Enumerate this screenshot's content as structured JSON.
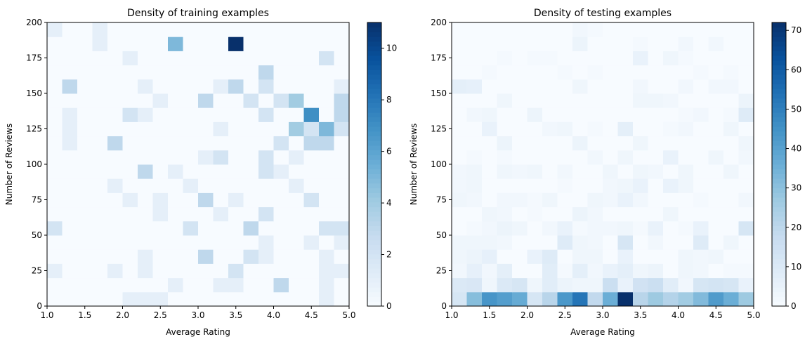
{
  "chart_data": [
    {
      "type": "heatmap",
      "title": "Density of training examples",
      "xlabel": "Average Rating",
      "ylabel": "Number of Reviews",
      "xlim": [
        1.0,
        5.0
      ],
      "ylim": [
        0,
        200
      ],
      "x_bins": 20,
      "y_bins": 20,
      "xticks": [
        "1.0",
        "1.5",
        "2.0",
        "2.5",
        "3.0",
        "3.5",
        "4.0",
        "4.5",
        "5.0"
      ],
      "yticks": [
        "0",
        "25",
        "50",
        "75",
        "100",
        "125",
        "150",
        "175",
        "200"
      ],
      "colormap": "Blues",
      "colorbar_range": [
        0,
        11
      ],
      "colorbar_ticks": [
        "0",
        "2",
        "4",
        "6",
        "8",
        "10"
      ],
      "counts_by_y_bin_from_bottom": [
        [
          0,
          0,
          0,
          0,
          0,
          1,
          1,
          1,
          0,
          0,
          0,
          0,
          0,
          0,
          0,
          0,
          0,
          0,
          1,
          0
        ],
        [
          0,
          0,
          0,
          0,
          0,
          0,
          0,
          0,
          1,
          0,
          0,
          1,
          1,
          0,
          0,
          3,
          0,
          0,
          1,
          0
        ],
        [
          1,
          0,
          0,
          0,
          1,
          0,
          1,
          0,
          0,
          0,
          0,
          0,
          2,
          0,
          0,
          0,
          0,
          0,
          1,
          1
        ],
        [
          0,
          0,
          0,
          0,
          0,
          0,
          1,
          0,
          0,
          0,
          3,
          0,
          0,
          2,
          1,
          0,
          0,
          0,
          1,
          0
        ],
        [
          0,
          0,
          0,
          0,
          0,
          0,
          0,
          0,
          0,
          0,
          0,
          0,
          0,
          0,
          1,
          0,
          0,
          1,
          0,
          1
        ],
        [
          2,
          0,
          0,
          0,
          0,
          0,
          0,
          0,
          0,
          2,
          0,
          0,
          0,
          3,
          0,
          0,
          0,
          0,
          2,
          2
        ],
        [
          0,
          0,
          0,
          0,
          0,
          0,
          0,
          1,
          0,
          0,
          0,
          1,
          0,
          0,
          2,
          0,
          0,
          0,
          0,
          0
        ],
        [
          0,
          0,
          0,
          0,
          0,
          1,
          0,
          1,
          0,
          0,
          3,
          0,
          1,
          0,
          0,
          0,
          0,
          2,
          0,
          0
        ],
        [
          0,
          0,
          0,
          0,
          1,
          0,
          0,
          0,
          0,
          1,
          0,
          0,
          0,
          0,
          0,
          0,
          1,
          0,
          0,
          0
        ],
        [
          0,
          0,
          0,
          0,
          0,
          0,
          3,
          0,
          1,
          0,
          0,
          0,
          0,
          0,
          2,
          1,
          0,
          0,
          0,
          0
        ],
        [
          0,
          0,
          0,
          0,
          0,
          0,
          0,
          0,
          0,
          0,
          1,
          2,
          0,
          0,
          2,
          0,
          1,
          0,
          0,
          0
        ],
        [
          0,
          1,
          0,
          0,
          3,
          0,
          0,
          0,
          0,
          0,
          0,
          0,
          0,
          0,
          0,
          2,
          0,
          3,
          3,
          0
        ],
        [
          0,
          1,
          0,
          0,
          0,
          0,
          0,
          0,
          0,
          0,
          0,
          1,
          0,
          0,
          0,
          0,
          4,
          2,
          5,
          2
        ],
        [
          0,
          1,
          0,
          0,
          0,
          2,
          1,
          0,
          0,
          0,
          0,
          0,
          0,
          0,
          2,
          0,
          0,
          7,
          0,
          3
        ],
        [
          0,
          0,
          0,
          0,
          0,
          0,
          0,
          1,
          0,
          0,
          3,
          0,
          0,
          2,
          0,
          2,
          4,
          0,
          0,
          3
        ],
        [
          0,
          3,
          0,
          0,
          0,
          0,
          1,
          0,
          0,
          0,
          0,
          1,
          3,
          0,
          2,
          0,
          0,
          0,
          0,
          1
        ],
        [
          0,
          0,
          0,
          0,
          0,
          0,
          0,
          0,
          0,
          0,
          0,
          0,
          0,
          0,
          3,
          0,
          0,
          0,
          0,
          0
        ],
        [
          0,
          0,
          0,
          0,
          0,
          1,
          0,
          0,
          0,
          0,
          0,
          0,
          0,
          0,
          0,
          0,
          0,
          0,
          2,
          0
        ],
        [
          0,
          0,
          0,
          1,
          0,
          0,
          0,
          0,
          5,
          0,
          0,
          0,
          11,
          0,
          0,
          0,
          0,
          0,
          0,
          0
        ],
        [
          1,
          0,
          0,
          1,
          0,
          0,
          0,
          0,
          0,
          0,
          0,
          0,
          0,
          0,
          0,
          0,
          0,
          0,
          0,
          0
        ]
      ]
    },
    {
      "type": "heatmap",
      "title": "Density of testing examples",
      "xlabel": "Average Rating",
      "ylabel": "Number of Reviews",
      "xlim": [
        1.0,
        5.0
      ],
      "ylim": [
        0,
        200
      ],
      "x_bins": 20,
      "y_bins": 20,
      "xticks": [
        "1.0",
        "1.5",
        "2.0",
        "2.5",
        "3.0",
        "3.5",
        "4.0",
        "4.5",
        "5.0"
      ],
      "yticks": [
        "0",
        "25",
        "50",
        "75",
        "100",
        "125",
        "150",
        "175",
        "200"
      ],
      "colormap": "Blues",
      "colorbar_range": [
        0,
        72
      ],
      "colorbar_ticks": [
        "0",
        "10",
        "20",
        "30",
        "40",
        "50",
        "60",
        "70"
      ],
      "counts_by_y_bin_from_bottom": [
        [
          12,
          31,
          44,
          41,
          37,
          12,
          21,
          43,
          53,
          19,
          36,
          72,
          21,
          27,
          22,
          26,
          32,
          42,
          36,
          27
        ],
        [
          10,
          11,
          3,
          10,
          12,
          3,
          8,
          4,
          3,
          3,
          16,
          5,
          14,
          16,
          8,
          2,
          12,
          13,
          12,
          5
        ],
        [
          2,
          6,
          2,
          7,
          0,
          0,
          8,
          1,
          7,
          2,
          5,
          7,
          3,
          4,
          0,
          3,
          2,
          0,
          1,
          1
        ],
        [
          3,
          4,
          6,
          0,
          0,
          5,
          9,
          0,
          3,
          3,
          0,
          5,
          0,
          0,
          0,
          3,
          2,
          3,
          0,
          0
        ],
        [
          3,
          3,
          3,
          2,
          0,
          0,
          0,
          9,
          3,
          2,
          0,
          12,
          0,
          2,
          0,
          0,
          9,
          0,
          3,
          0
        ],
        [
          0,
          1,
          2,
          4,
          3,
          0,
          2,
          5,
          1,
          2,
          2,
          3,
          1,
          5,
          0,
          1,
          5,
          0,
          0,
          12
        ],
        [
          0,
          0,
          3,
          2,
          0,
          1,
          0,
          0,
          4,
          2,
          0,
          0,
          0,
          0,
          3,
          0,
          0,
          0,
          0,
          0
        ],
        [
          3,
          2,
          0,
          2,
          2,
          1,
          3,
          0,
          0,
          3,
          2,
          5,
          2,
          0,
          0,
          0,
          1,
          0,
          0,
          2
        ],
        [
          2,
          3,
          0,
          0,
          0,
          0,
          0,
          1,
          0,
          0,
          2,
          3,
          5,
          0,
          5,
          3,
          0,
          0,
          0,
          0
        ],
        [
          2,
          3,
          0,
          3,
          2,
          3,
          0,
          2,
          0,
          0,
          3,
          0,
          3,
          2,
          0,
          3,
          0,
          0,
          3,
          0
        ],
        [
          0,
          1,
          0,
          1,
          0,
          0,
          0,
          0,
          0,
          2,
          0,
          3,
          0,
          0,
          5,
          0,
          0,
          3,
          0,
          2
        ],
        [
          0,
          0,
          0,
          4,
          0,
          0,
          0,
          0,
          4,
          0,
          0,
          0,
          3,
          0,
          0,
          0,
          0,
          0,
          0,
          3
        ],
        [
          0,
          0,
          5,
          0,
          0,
          0,
          2,
          3,
          0,
          1,
          0,
          7,
          0,
          0,
          1,
          2,
          0,
          0,
          3,
          0
        ],
        [
          0,
          2,
          3,
          0,
          0,
          4,
          0,
          0,
          0,
          0,
          0,
          0,
          0,
          0,
          0,
          1,
          2,
          0,
          1,
          9
        ],
        [
          0,
          0,
          0,
          3,
          0,
          0,
          0,
          0,
          0,
          0,
          0,
          0,
          3,
          3,
          2,
          0,
          0,
          0,
          0,
          4
        ],
        [
          7,
          6,
          0,
          0,
          0,
          0,
          0,
          0,
          3,
          0,
          0,
          0,
          2,
          0,
          0,
          2,
          0,
          2,
          2,
          0
        ],
        [
          0,
          0,
          1,
          0,
          0,
          0,
          0,
          1,
          0,
          1,
          0,
          0,
          0,
          0,
          0,
          0,
          1,
          0,
          1,
          0
        ],
        [
          0,
          0,
          0,
          1,
          0,
          1,
          1,
          0,
          0,
          0,
          0,
          0,
          5,
          0,
          3,
          1,
          0,
          0,
          0,
          0
        ],
        [
          0,
          0,
          0,
          0,
          0,
          0,
          0,
          0,
          4,
          0,
          0,
          0,
          1,
          0,
          0,
          2,
          0,
          2,
          0,
          0
        ],
        [
          0,
          0,
          0,
          0,
          0,
          0,
          0,
          0,
          2,
          1,
          0,
          0,
          0,
          0,
          0,
          0,
          0,
          0,
          0,
          0
        ]
      ]
    }
  ]
}
